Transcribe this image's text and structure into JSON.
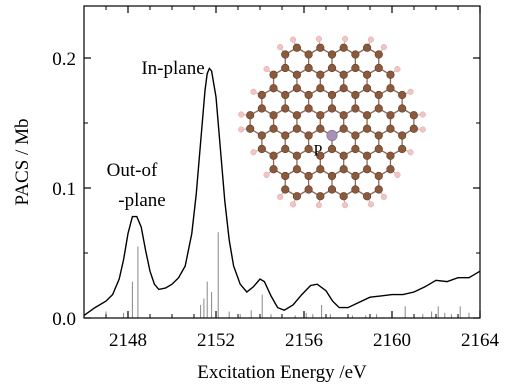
{
  "chart_data": {
    "type": "line",
    "title": "",
    "xlabel": "Excitation Energy /eV",
    "ylabel": "PACS / Mb",
    "xlim": [
      2146,
      2164
    ],
    "ylim": [
      0,
      0.24
    ],
    "xticks": [
      2148,
      2152,
      2156,
      2160,
      2164
    ],
    "yticks": [
      0.0,
      0.1,
      0.2
    ],
    "xtick_labels": [
      "2148",
      "2152",
      "2156",
      "2160",
      "2164"
    ],
    "ytick_labels": [
      "0.0",
      "0.1",
      "0.2"
    ],
    "grid": false,
    "legend": "none",
    "series": [
      {
        "x": [
          2146.0,
          2146.5,
          2147.0,
          2147.3,
          2147.6,
          2147.8,
          2148.0,
          2148.2,
          2148.4,
          2148.6,
          2148.8,
          2149.0,
          2149.2,
          2149.4,
          2149.7,
          2150.0,
          2150.3,
          2150.6,
          2150.9,
          2151.1,
          2151.3,
          2151.5,
          2151.6,
          2151.7,
          2151.8,
          2152.0,
          2152.2,
          2152.4,
          2152.6,
          2152.8,
          2153.1,
          2153.4,
          2153.7,
          2154.0,
          2154.2,
          2154.5,
          2154.8,
          2155.1,
          2155.5,
          2155.9,
          2156.3,
          2156.6,
          2157.0,
          2157.3,
          2157.6,
          2158.0,
          2158.5,
          2159.0,
          2159.5,
          2160.0,
          2160.5,
          2161.0,
          2161.5,
          2162.0,
          2162.5,
          2163.0,
          2163.5,
          2164.0
        ],
        "y": [
          0.002,
          0.008,
          0.013,
          0.018,
          0.03,
          0.045,
          0.065,
          0.078,
          0.078,
          0.07,
          0.052,
          0.036,
          0.026,
          0.022,
          0.023,
          0.026,
          0.031,
          0.04,
          0.065,
          0.095,
          0.135,
          0.175,
          0.188,
          0.192,
          0.19,
          0.17,
          0.13,
          0.09,
          0.06,
          0.04,
          0.026,
          0.02,
          0.024,
          0.03,
          0.028,
          0.017,
          0.008,
          0.006,
          0.01,
          0.018,
          0.025,
          0.026,
          0.021,
          0.013,
          0.008,
          0.008,
          0.012,
          0.016,
          0.017,
          0.018,
          0.018,
          0.02,
          0.024,
          0.029,
          0.028,
          0.031,
          0.031,
          0.036
        ]
      }
    ],
    "stick_spectrum": {
      "x": [
        2147.0,
        2147.8,
        2148.2,
        2148.45,
        2149.0,
        2150.0,
        2151.3,
        2151.45,
        2151.6,
        2151.8,
        2152.1,
        2152.6,
        2153.1,
        2153.6,
        2154.1,
        2154.5,
        2155.6,
        2156.1,
        2156.4,
        2156.8,
        2157.2,
        2158.2,
        2158.8,
        2159.3,
        2160.6,
        2161.4,
        2161.8,
        2162.1,
        2162.4,
        2162.7,
        2163.1,
        2163.5
      ],
      "y": [
        0.005,
        0.004,
        0.028,
        0.055,
        0.003,
        0.003,
        0.01,
        0.015,
        0.028,
        0.02,
        0.066,
        0.005,
        0.003,
        0.006,
        0.018,
        0.003,
        0.002,
        0.004,
        0.003,
        0.01,
        0.003,
        0.002,
        0.002,
        0.003,
        0.009,
        0.003,
        0.005,
        0.009,
        0.004,
        0.003,
        0.009,
        0.004
      ]
    },
    "annotations": [
      "In-plane",
      "Out-of",
      "-plane"
    ],
    "inset": {
      "description_label": "P",
      "colors": {
        "carbon": "#8b5a3c",
        "hydrogen": "#f3c4c4",
        "phosphorus": "#a890b6",
        "bond": "#8a6a5a"
      }
    }
  }
}
